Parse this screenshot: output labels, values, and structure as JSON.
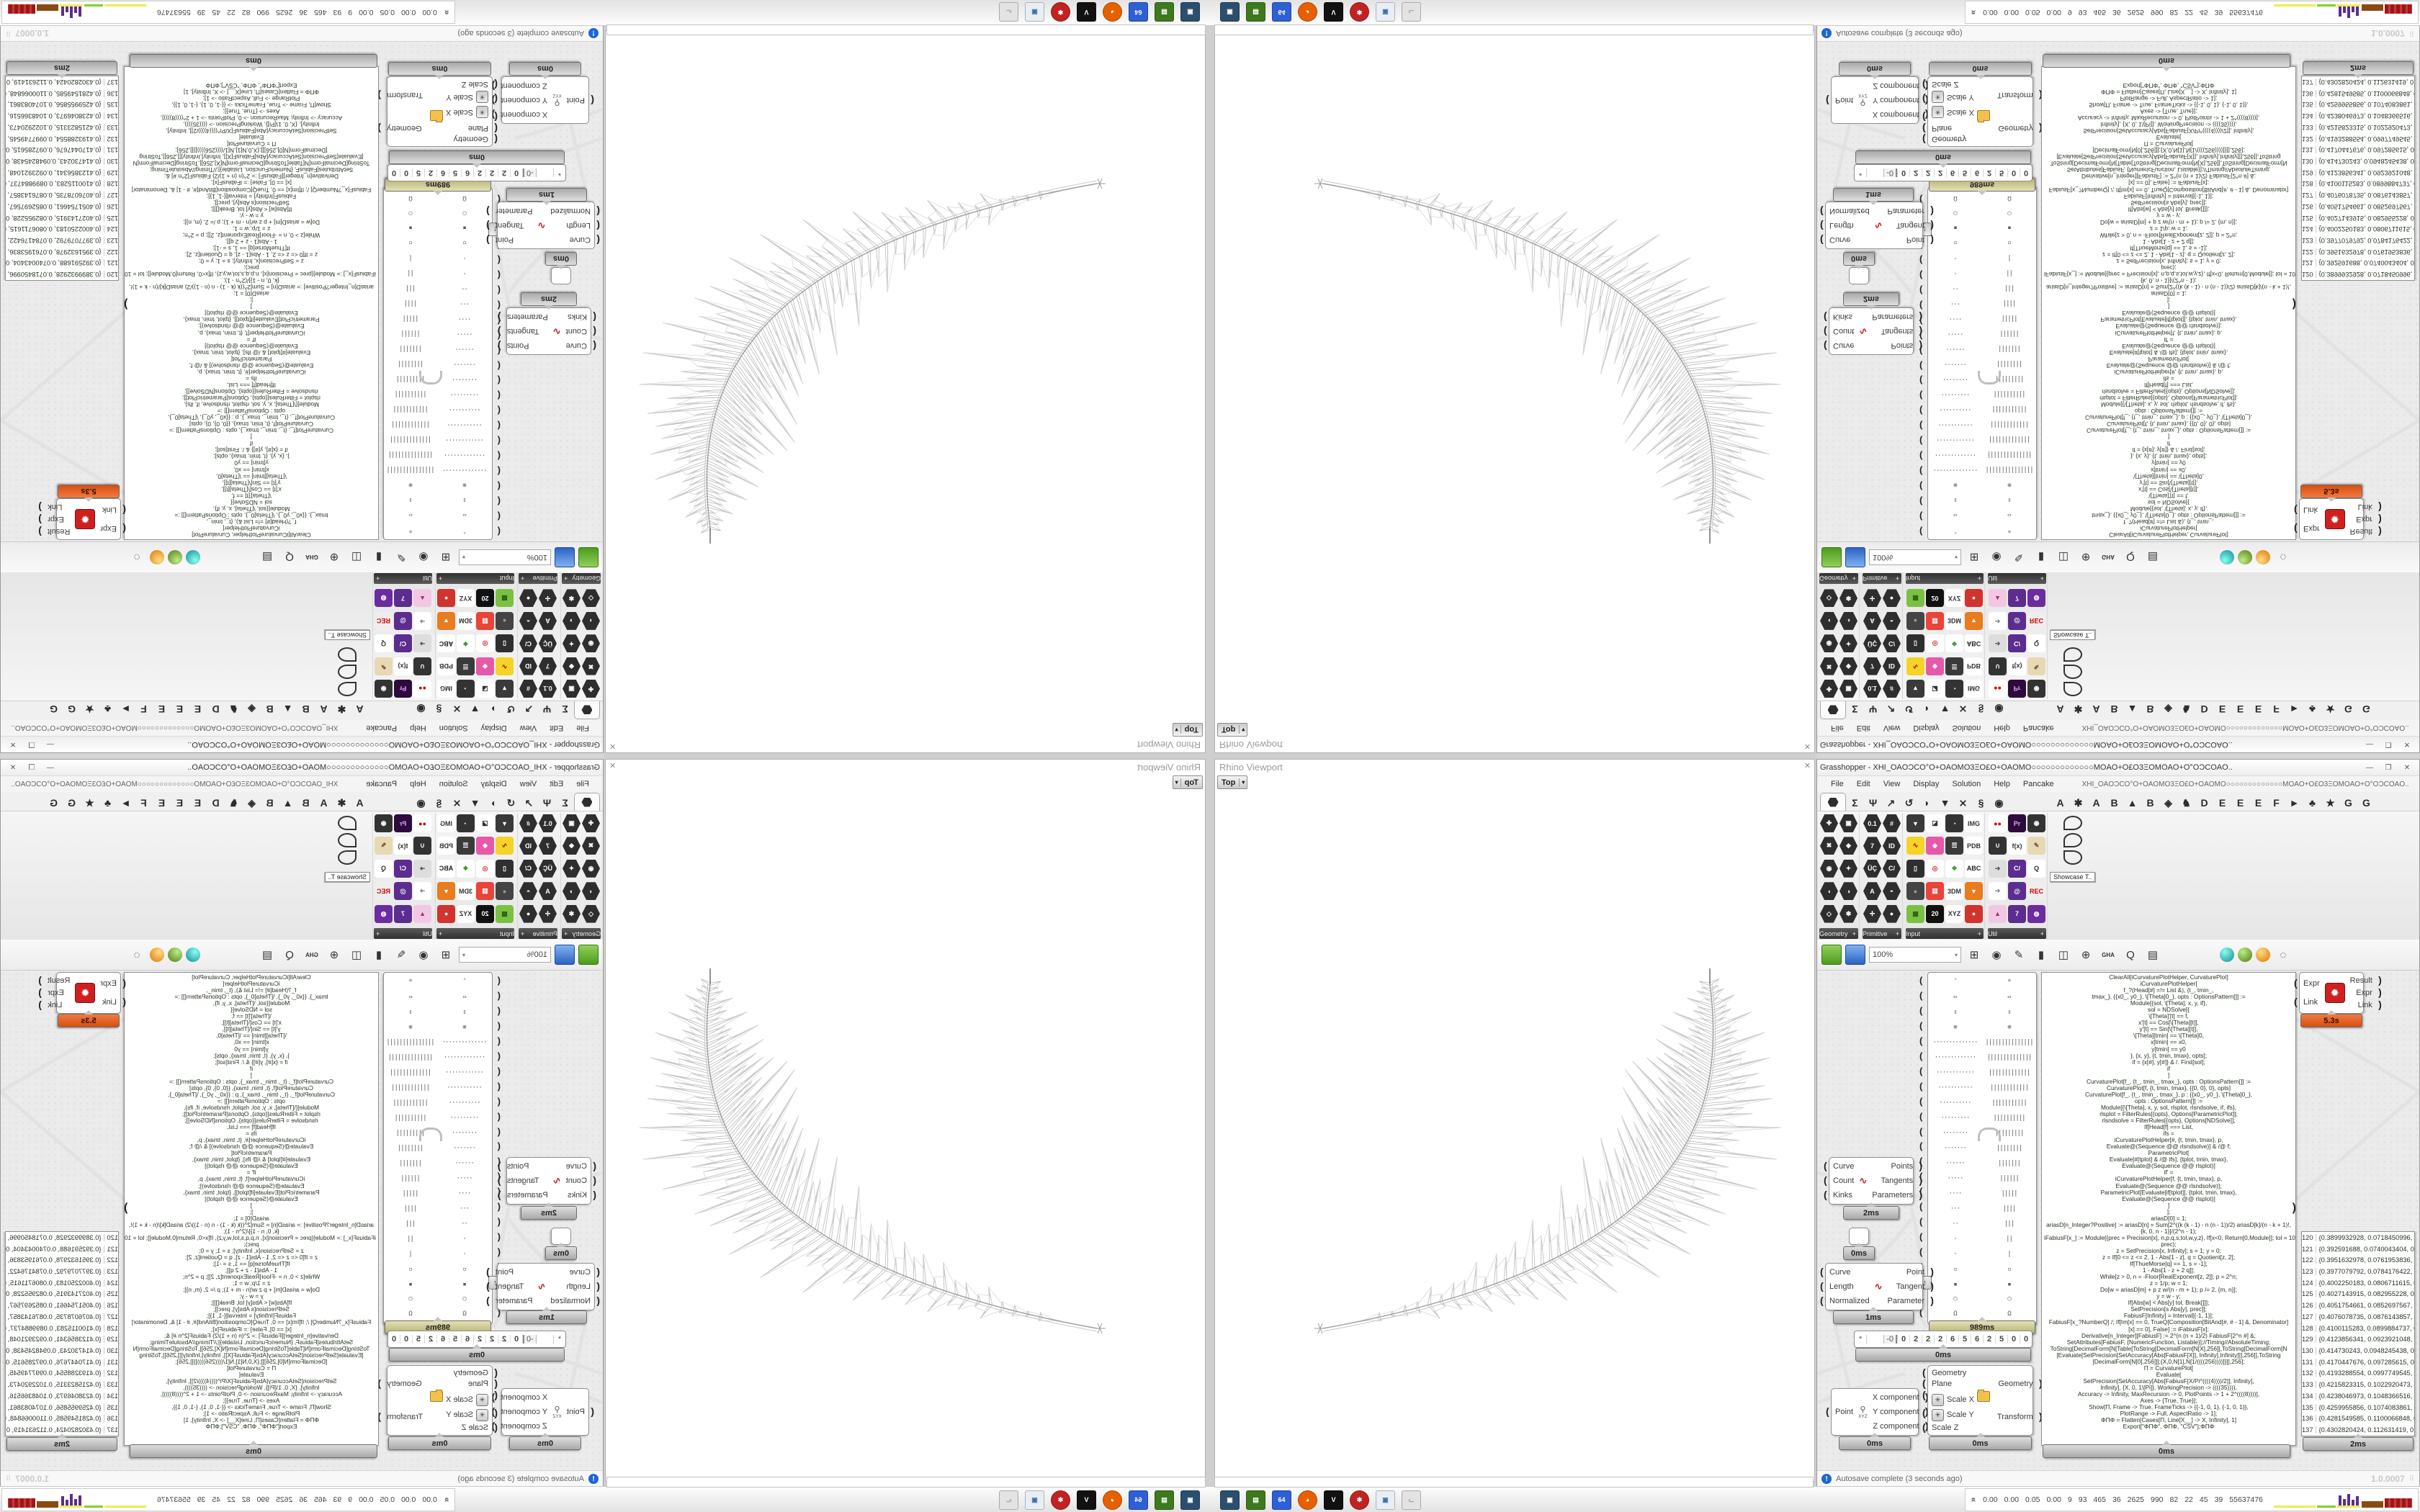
{
  "accent_colors": {
    "time_label_olive": "#b7b271",
    "time_label_orange": "#d94e12",
    "autosave_icon_blue": "#1c66d6",
    "red_component_icon": "#cf1f1f"
  },
  "rhino": {
    "viewport_title": "Rhino Viewport",
    "view_button": "Top",
    "view_button_arrow": "▾",
    "close_icon": "✕"
  },
  "gh": {
    "title": "Grasshopper - XHI_OAOƆCO°O+OAOMO3ΞO£O+OAOMO○○○○○○○○○○○○○MOAO+O£O3ΞOMOAO+O°OƆCOAO..",
    "window_buttons": [
      "—",
      "❐",
      "✕"
    ],
    "menu": [
      "File",
      "Edit",
      "View",
      "Display",
      "Solution",
      "Help",
      "Pancake"
    ],
    "menu_right": "XHI_OAOƆCO°O+OAOMO3ΞO£O+OAOMO○○○○○○○○○○○○○MOAO+O£O3ΞOMOAO+O°OƆCOAO..",
    "tabs_core": [
      "Σ",
      "Ψ",
      "↗",
      "↺",
      "◗",
      "▼",
      "⨯",
      "§",
      "◉"
    ],
    "tabs_plugins": [
      "A",
      "✱",
      "A",
      "B",
      "▲",
      "B",
      "◈",
      "♞",
      "D",
      "E",
      "E",
      "E",
      "F",
      "►",
      "♣",
      "★",
      "G",
      "G"
    ],
    "toolbar": {
      "zoom_value": "100%",
      "zoom_arrow": "▾"
    },
    "statusbar": {
      "autosave": "Autosave complete (3 seconds ago)",
      "version": "1.0.0007",
      "grip": "⠿"
    }
  },
  "palette": {
    "groups": [
      {
        "label": "Geometry",
        "plus": "+",
        "icons": [
          {
            "t": "✚",
            "bg": "#2e2e2e",
            "fg": "#fff",
            "hex": true
          },
          {
            "t": "✖",
            "bg": "#2e2e2e",
            "fg": "#fff",
            "hex": true
          },
          {
            "t": "◉",
            "bg": "#2e2e2e",
            "fg": "#fff",
            "hex": true
          },
          {
            "t": "◖",
            "bg": "#2e2e2e",
            "fg": "#fff",
            "hex": true
          },
          {
            "t": "◇",
            "bg": "#2e2e2e",
            "fg": "#fff",
            "hex": true
          },
          {
            "t": "▣",
            "bg": "#2e2e2e",
            "fg": "#fff",
            "hex": true
          },
          {
            "t": "◆",
            "bg": "#2e2e2e",
            "fg": "#fff",
            "hex": true
          },
          {
            "t": "✦",
            "bg": "#2e2e2e",
            "fg": "#fff",
            "hex": true
          },
          {
            "t": "◑",
            "bg": "#2e2e2e",
            "fg": "#fff",
            "hex": true
          },
          {
            "t": "✱",
            "bg": "#2e2e2e",
            "fg": "#fff",
            "hex": true
          }
        ]
      },
      {
        "label": "Primitive",
        "plus": "+",
        "icons": [
          {
            "t": "0.1",
            "bg": "#2e2e2e",
            "fg": "#fff",
            "hex": true
          },
          {
            "t": "7",
            "bg": "#2e2e2e",
            "fg": "#fff",
            "hex": true
          },
          {
            "t": "ÜÇ",
            "bg": "#2e2e2e",
            "fg": "#fff",
            "hex": true
          },
          {
            "t": "A",
            "bg": "#2e2e2e",
            "fg": "#fff",
            "hex": true
          },
          {
            "t": "✛",
            "bg": "#2e2e2e",
            "fg": "#fff",
            "hex": true
          },
          {
            "t": "#",
            "bg": "#2e2e2e",
            "fg": "#fff",
            "hex": true
          },
          {
            "t": "ID",
            "bg": "#2e2e2e",
            "fg": "#fff",
            "hex": true
          },
          {
            "t": "C/",
            "bg": "#2e2e2e",
            "fg": "#fff",
            "hex": true
          },
          {
            "t": "◓",
            "bg": "#2e2e2e",
            "fg": "#fff",
            "hex": true
          },
          {
            "t": "●",
            "bg": "#2e2e2e",
            "fg": "#fff",
            "hex": true
          }
        ]
      },
      {
        "label": "Input",
        "plus": "+",
        "icons": [
          {
            "t": "▼",
            "bg": "#3a3a3a",
            "fg": "#fff"
          },
          {
            "t": "∿",
            "bg": "#f5d327",
            "fg": "#a00"
          },
          {
            "t": "▯",
            "bg": "#2f2f2f",
            "fg": "#fff"
          },
          {
            "t": "●",
            "bg": "#444",
            "fg": "#999"
          },
          {
            "t": "▦",
            "bg": "#7ac143",
            "fg": "#2e5d0e"
          },
          {
            "t": "◪",
            "bg": "#fff",
            "fg": "#333"
          },
          {
            "t": "◈",
            "bg": "#e659a8",
            "fg": "#fff"
          },
          {
            "t": "◎",
            "bg": "#fff",
            "fg": "#d33"
          },
          {
            "t": "▥",
            "bg": "#e8443a",
            "fg": "#fff"
          },
          {
            "t": "20",
            "bg": "#111",
            "fg": "#fff"
          },
          {
            "t": "◔",
            "bg": "#333",
            "fg": "#fff"
          },
          {
            "t": "☰",
            "bg": "#3a3a3a",
            "fg": "#fff"
          },
          {
            "t": "❖",
            "bg": "#fff",
            "fg": "#3aa02f"
          },
          {
            "t": "3DM",
            "bg": "#fff",
            "fg": "#333"
          },
          {
            "t": "XYZ",
            "bg": "#fff",
            "fg": "#333"
          },
          {
            "t": "IMG",
            "bg": "#fff",
            "fg": "#333"
          },
          {
            "t": "PDB",
            "bg": "#fff",
            "fg": "#333"
          },
          {
            "t": "ABC",
            "bg": "#fff",
            "fg": "#222"
          },
          {
            "t": "▼",
            "bg": "#e87c1e",
            "fg": "#fff"
          },
          {
            "t": "●",
            "bg": "#d0342c",
            "fg": "#fff"
          }
        ]
      },
      {
        "label": "Util",
        "plus": "+",
        "icons": [
          {
            "t": "●●",
            "bg": "#fff",
            "fg": "#c00"
          },
          {
            "t": "∪",
            "bg": "#333",
            "fg": "#fff"
          },
          {
            "t": "➜",
            "bg": "#ddd",
            "fg": "#555"
          },
          {
            "t": "➜",
            "bg": "#fff",
            "fg": "#888"
          },
          {
            "t": "▲",
            "bg": "#f2c7e3",
            "fg": "#a0306e"
          },
          {
            "t": "Pr",
            "bg": "#2d0b3d",
            "fg": "#d9a7f2"
          },
          {
            "t": "f(x)",
            "bg": "#fff",
            "fg": "#333"
          },
          {
            "t": "C/",
            "bg": "#5b2d8e",
            "fg": "#fff"
          },
          {
            "t": "@",
            "bg": "#5b2d8e",
            "fg": "#fff"
          },
          {
            "t": "7",
            "bg": "#5b2d8e",
            "fg": "#fff"
          },
          {
            "t": "◉",
            "bg": "#333",
            "fg": "#fff"
          },
          {
            "t": "✎",
            "bg": "#e8d9b5",
            "fg": "#7a5230"
          },
          {
            "t": "Q",
            "bg": "#fff",
            "fg": "#333"
          },
          {
            "t": "REC",
            "bg": "#eee",
            "fg": "#c00"
          },
          {
            "t": "◍",
            "bg": "#6a2da0",
            "fg": "#fff"
          }
        ]
      }
    ],
    "showcase_label": "Showcase T.."
  },
  "canvas": {
    "components": {
      "discontinuity": {
        "inputs": [
          "Curve",
          "Count",
          "Kinks"
        ],
        "outputs": [
          "Points",
          "Tangents",
          "Parameters"
        ],
        "time": "2ms",
        "icon": "∿"
      },
      "relay": {
        "time": "0ms"
      },
      "evaluate_length": {
        "inputs": [
          "Curve",
          "Length",
          "Normalized"
        ],
        "outputs": [
          "Point",
          "Tangent",
          "Parameter"
        ],
        "time": "1ms",
        "icon": "∿"
      },
      "deconstruct_point": {
        "inputs": [
          "Point"
        ],
        "outputs": [
          "X component",
          "Y component",
          "Z component"
        ],
        "time": "0ms",
        "icon_label": "XYZ",
        "icon_glyph": "⚲"
      },
      "scale_nu": {
        "inputs": [
          "Geometry",
          "Plane",
          "Scale X",
          "Scale Y",
          "Scale Z"
        ],
        "outputs": [
          "Geometry",
          "Transform"
        ],
        "time": "0ms",
        "asterisk": "✳"
      },
      "expression": {
        "inputs": [
          "Expr",
          "Link"
        ],
        "outputs": [
          "Result",
          "Expr",
          "Link"
        ],
        "time": "5.3s",
        "icon": "✹"
      },
      "glyph_panel": {
        "time": "989ms",
        "up_button": "↑"
      },
      "slider": {
        "prefix": "*",
        "handle": "-0",
        "digits": [
          "0",
          "2",
          "2",
          "2",
          "6",
          "5",
          "6",
          "2",
          "5",
          "0",
          "0"
        ],
        "time": "0ms"
      },
      "code_panel_time": "0ms",
      "points_panel_time": "2ms"
    },
    "glyph_rows": [
      [
        "ˆ",
        "*"
      ],
      [
        "⇔",
        "⇔"
      ],
      [
        "⇕",
        "⇕"
      ],
      [
        "⊗",
        "⊗"
      ],
      [
        "··············",
        "|||||||||||||||"
      ],
      [
        "·············",
        "||||||||||||||"
      ],
      [
        "············",
        "|||||||||||||"
      ],
      [
        "···········",
        "||||||||||||"
      ],
      [
        "··········",
        "|||||||||||"
      ],
      [
        "·········",
        "||||||||||"
      ],
      [
        "········",
        "|||||||||"
      ],
      [
        "·······",
        "||||||||"
      ],
      [
        "······",
        "|||||||"
      ],
      [
        "·····",
        "||||||"
      ],
      [
        "····",
        "|||||"
      ],
      [
        "···",
        "||||"
      ],
      [
        "··",
        "|||"
      ],
      [
        "·",
        "||"
      ],
      [
        "·",
        "|"
      ],
      [
        "▫",
        "▫"
      ],
      [
        "▪",
        "▪"
      ],
      [
        "○",
        "○"
      ],
      [
        "Ω",
        "Ω"
      ]
    ],
    "code_lines": [
      "ClearAll[iCurvaturePlotHelper, CurvaturePlot]",
      "iCurvaturePlotHelper[",
      "f_?(Head[#] =!= List &), {t_, tmin_,",
      "tmax_}, {{x0_, y0_}, \\[Theta]0_}, opts : OptionsPattern[]] :=",
      "Module[{sol, \\[Theta], x, y, if},",
      "sol = NDSolve[{",
      "\\[Theta]'[t] == f,",
      "x'[t] == Cos[\\[Theta][t]],",
      "y'[t] == Sin[\\[Theta][t]],",
      "\\[Theta][tmin] == \\[Theta]0,",
      "x[tmin] == x0,",
      "y[tmin] == y0",
      "}, {x, y}, {t, tmin, tmax}, opts];",
      "if = {x[#], y[#]} & /. First[sol];",
      "if",
      "]",
      "CurvaturePlot[f_, {t_, tmin_, tmax_}, opts : OptionsPattern[]] :=",
      "CurvaturePlot[f, {t, tmin, tmax}, {{0, 0}, 0}, opts]",
      "CurvaturePlot[f_, {t_, tmin_, tmax_}, p : {{x0_, y0_}, \\[Theta]0_},",
      "opts : OptionsPattern[]] :=",
      "Module[{\\[Theta], x, y, sol, rlsplot, rlsndsolve, if, ifs},",
      "rlsplot = FilterRules[{opts}, Options[ParametricPlot]];",
      "rlsndsolve = FilterRules[{opts}, Options[NDSolve]];",
      "If[Head[f] === List,",
      "ifs =",
      "iCurvaturePlotHelper[#, {t, tmin, tmax}, p,",
      "Evaluate@(Sequence @@ rlsndsolve)] & /@ f;",
      "ParametricPlot[",
      "Evaluate[#[tplot] & /@ ifs], {tplot, tmin, tmax},",
      "Evaluate@(Sequence @@ rlsplot)]",
      "",
      "if' =",
      "iCurvaturePlotHelper[f, {t, tmin, tmax}, p,",
      "Evaluate@(Sequence @@ rlsndsolve)];",
      "ParametricPlot[Evaluate[if[tplot]], {tplot, tmin, tmax},",
      "Evaluate@(Sequence @@ rlsplot)]",
      "]",
      "];",
      "",
      "ariasD[0] = 1;",
      "ariasD[n_Integer?Positive] := ariasD[n] = Sum[2^((k (k - 1) - n (n - 1))/2) ariasD[k]/(n - k + 1)!,",
      "{k, 0, n - 1}]/(2^n - 1);",
      "iFabiusF[x_] := Module[{prec = Precision[x], n,p,q,s,tol,w,y,z}, If[x<0, Return[0,Module]]; tol = 10^(-",
      "prec);",
      "z = SetPrecision[x, Infinity]; s = 1; y = 0;",
      "z = If[0 <= z <= 2, 1 - Abs[1 - z], q = Quotient[z, 2];",
      "If[ThueMorse[q] == 1, s = -1];",
      "1 - Abs[1 - z + 2 q]];",
      "While[z > 0, n = -Floor[RealExponent[z, 2]]; p = 2^n;",
      "z = 1/p; w = 1;",
      "Do[w = ariasD[m] + p z w/(n - m + 1); p /= 2, {m, n}];",
      "y = w - y;",
      "If[Abs[w] < Abs[y] tol, Break[]]];",
      "SetPrecision[s Abs[y], prec]];",
      "FabiusF[Infinity] = Interval[{-1, 1}];",
      "FabiusF[x_?NumberQ] /; If[Im[x] == 0, TrueQ[Composition[BitAnd[#, # - 1] &, Denominator]",
      "[x] == 0], False] := iFabiusF[x];",
      "Derivative[n_Integer][FabiusF] := 2^(n (n + 1)/2) FabiusF[2^n #] &;",
      "SetAttributes[FabiusF, {NumericFunction, Listable}];//Timing//AbsoluteTiming;",
      "",
      "ToString[DecimalForm[N[Table[ToString[DecimalForm[N[X],256]],ToString[DecimalForm[N",
      "[Evaluate[SetPrecision[SetAccuracy[Abs[FabiusF[X]], Infinity],Infinity]]],256]],ToString",
      "[DecimalForm[N[0],256]]];{X,0,N[1],N[1/((((256))))]}]],256];",
      "",
      "Π = CurvaturePlot[",
      "Evaluate[",
      "SetPrecision[SetAccuracy[Abs[FabiusF[X/Pi^((((4))))/2]], Infinity],",
      "Infinity], {X, 0, 1\\[Pi]}, WorkingPrecision -> ((((35)))),",
      "Accuracy -> Infinity, MaxRecursion -> 0, PlotPoints -> 1 + 2^((((8))))],",
      "Axes -> {True, True}];",
      "Show[Π, Frame -> True, FrameTicks -> {{-1, 0, 1}, {-1, 0, 1}},",
      "PlotRange -> Full, AspectRatio -> 1];",
      "ΦΠΦ = Flatten[Cases[Π, Line[X__] -> X, Infinity], 1]",
      "Export[\"ΦΠΦ\", ΦΠΦ, \"CSV\"];ΦΠΦ"
    ],
    "points_rows": [
      {
        "i": "120",
        "v": "{0.3899932928, 0.0718450996, 0.0}"
      },
      {
        "i": "121",
        "v": "{0.392591688, 0.0740043404, 0.0}"
      },
      {
        "i": "122",
        "v": "{0.3951632978, 0.0761953836, 0.0}"
      },
      {
        "i": "123",
        "v": "{0.3977079792, 0.0784176422, 0.0}"
      },
      {
        "i": "124",
        "v": "{0.4002250183, 0.0806711615, 0.0}"
      },
      {
        "i": "125",
        "v": "{0.4027143915, 0.082955228, 0.0}"
      },
      {
        "i": "126",
        "v": "{0.4051754661, 0.0852697567, 0.0}"
      },
      {
        "i": "127",
        "v": "{0.4076078735, 0.0876143857, 0.0}"
      },
      {
        "i": "128",
        "v": "{0.4100115283, 0.0899884737, 0.0}"
      },
      {
        "i": "129",
        "v": "{0.4123856341, 0.0923921048, 0.0}"
      },
      {
        "i": "130",
        "v": "{0.414730243, 0.0948245438, 0.0}"
      },
      {
        "i": "131",
        "v": "{0.4170447676, 0.097285615, 0.0}"
      },
      {
        "i": "132",
        "v": "{0.4193288554, 0.0997749545, 0.0}"
      },
      {
        "i": "133",
        "v": "{0.4215823315, 0.1022920473, 0.0}"
      },
      {
        "i": "134",
        "v": "{0.4238046973, 0.1048366516, 0.0}"
      },
      {
        "i": "135",
        "v": "{0.4259955856, 0.1074083861, 0.0}"
      },
      {
        "i": "136",
        "v": "{0.4281549585, 0.1100066848, 0.0}"
      },
      {
        "i": "137",
        "v": "{0.4302820424, 0.112631419, 0.0}"
      }
    ]
  },
  "taskbar": {
    "icons": [
      {
        "name": "system-monitor-icon",
        "bg": "#2b4f6e",
        "t": "▣"
      },
      {
        "name": "green-drive-icon",
        "bg": "#3d7a1e",
        "t": "▤"
      },
      {
        "name": "floppy-64-icon",
        "bg": "#2e5fd4",
        "t": "64"
      },
      {
        "name": "firefox-icon",
        "bg": "#e66000",
        "t": "◕",
        "round": true
      },
      {
        "name": "black-fox-icon",
        "bg": "#111111",
        "t": "V"
      },
      {
        "name": "red-badge-icon",
        "bg": "#c22222",
        "t": "✱",
        "round": true
      },
      {
        "name": "window-app-icon",
        "bg": "#e9eef5",
        "t": "▣",
        "fg": "#3a6ea5"
      },
      {
        "name": "gray-cat-icon",
        "bg": "#e3e3e3",
        "t": "ᓚ",
        "fg": "#aaa"
      }
    ]
  },
  "rhino_status": {
    "chevron": "«",
    "numbers": [
      "0.00",
      "0.00",
      "0.05",
      "0.00",
      "9",
      "93",
      "465",
      "36",
      "2625",
      "990",
      "82",
      "22",
      "45",
      "39",
      "55637476"
    ]
  }
}
